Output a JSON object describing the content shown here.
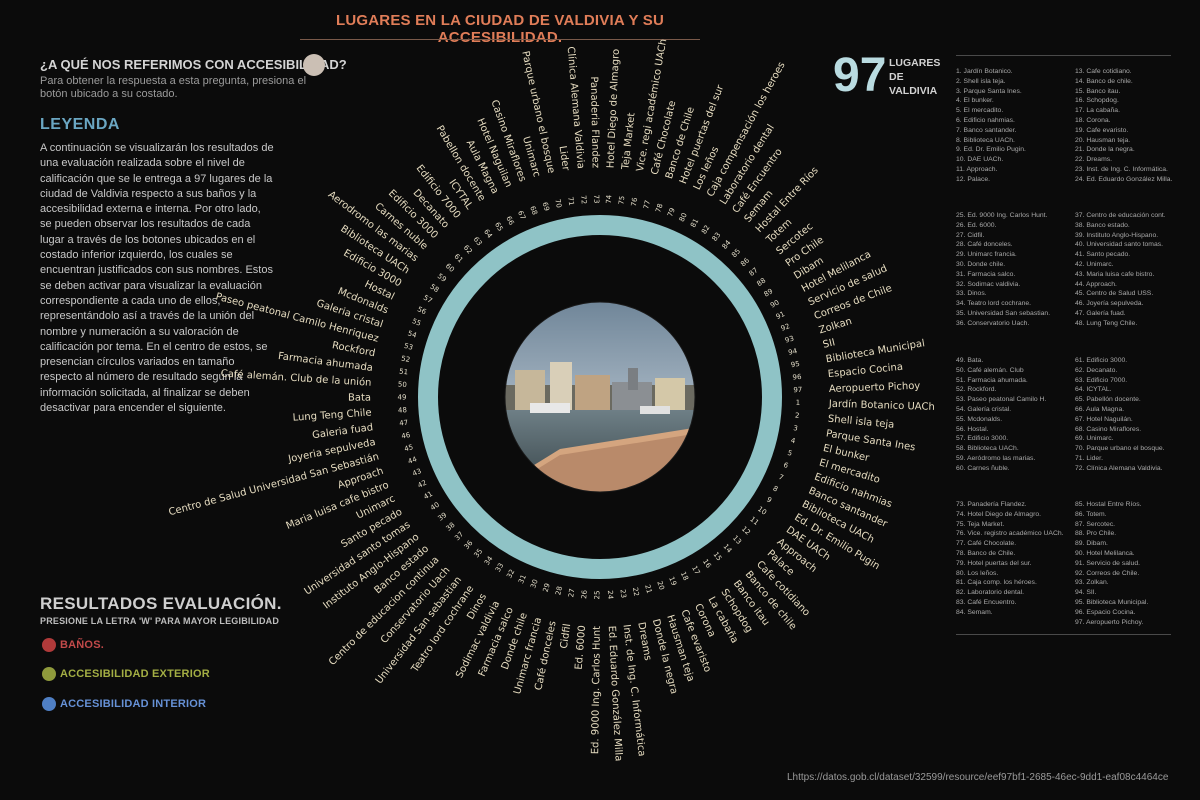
{
  "header": {
    "title": "LUGARES EN LA CIUDAD DE VALDIVIA Y SU ACCESIBILIDAD."
  },
  "question": {
    "heading": "¿A QUÉ NOS REFERIMOS CON ACCESIBILIDAD?",
    "text": "Para obtener la respuesta a esta pregunta, presiona el botón ubicado a su costado."
  },
  "legend": {
    "heading": "LEYENDA",
    "text": "A continuación se visualizarán los resultados de una evaluación realizada sobre el nivel de calificación que se le entrega a 97 lugares de la ciudad de Valdivia respecto a sus baños y la accesibilidad externa e interna. Por otro lado, se pueden observar los resultados de cada lugar a través de los botones ubicados en el costado inferior izquierdo, los cuales se encuentran justificados con sus nombres. Estos se deben activar para visualizar la evaluación correspondiente a cada uno de ellos, representándolo así a través de la unión del nombre y numeración a su valoración de calificación por tema. En el centro de estos, se presencian círculos variados en tamaño respecto al número de resultado según la información solicitada, al finalizar se deben desactivar para encender el siguiente."
  },
  "results": {
    "heading": "RESULTADOS EVALUACIÓN.",
    "subtitle": "PRESIONE LA LETRA 'W' PARA MAYOR LEGIBILIDAD",
    "buttons": [
      {
        "label": "BAÑOS.",
        "color": "#b03a3a",
        "text_color": "#c24a4a"
      },
      {
        "label": "ACCESIBILIDAD EXTERIOR",
        "color": "#8f9a3c",
        "text_color": "#a3ae44"
      },
      {
        "label": "ACCESIBILIDAD INTERIOR",
        "color": "#4f7fc4",
        "text_color": "#6691d6"
      }
    ]
  },
  "counter": {
    "value": "97",
    "label": "LUGARES DE VALDIVIA"
  },
  "source": "Lhttps://datos.gob.cl/dataset/32599/resource/eef97bf1-2685-46ec-9dd1-eaf08c4464ce",
  "chart_data": {
    "type": "radial-labels",
    "ring_color": "#8fc3c6",
    "label_color": "#e6dcc0",
    "center_image": "photo-valdivia-riverfront",
    "places": [
      "Jardín Botanico UACh",
      "Shell isla teja",
      "Parque Santa Ines",
      "El bunker",
      "El mercadito",
      "Edificio nahmias",
      "Banco santander",
      "Biblioteca UACh",
      "Ed. Dr. Emilio Pugin",
      "DAE UACh",
      "Approach",
      "Palace",
      "Cafe cotidiano",
      "Banco de chile",
      "Banco itau",
      "Schopdog",
      "La cabaña",
      "Corona",
      "Cafe evaristo",
      "Hausman teja",
      "Donde la negra",
      "Dreams",
      "Inst. de Ing. C. Informática",
      "Ed. Eduardo González Milla",
      "Ed. 9000 Ing. Carlos Hunt",
      "Ed. 6000",
      "Cidfil",
      "Café donceles",
      "Unimarc francia",
      "Donde chile",
      "Farmacia salco",
      "Sodimac valdivia",
      "Dinos",
      "Teatro lord cochrane",
      "Universidad San sebastian",
      "Conservatorio Uach",
      "Centro de educacion continua",
      "Banco estado",
      "Instituto Anglo-Hispano",
      "Universidad santo tomas",
      "Santo pecado",
      "Unimarc",
      "Maria luisa cafe bistro",
      "Approach",
      "Centro de Salud Universidad San Sebastián",
      "Joyeria sepulveda",
      "Galeria fuad",
      "Lung Teng Chile",
      "Bata",
      "Café alemán. Club de la unión",
      "Farmacia ahumada",
      "Rockford",
      "Paseo peatonal Camilo Henriquez",
      "Galeria cristal",
      "Mcdonalds",
      "Hostal",
      "Edificio 3000",
      "Biblioteca UACh",
      "Aerodromo las marias",
      "Carnes nuble",
      "Edificio 3000",
      "Decanato",
      "Edificio 7000",
      "ICYTAL",
      "Pabellon docente",
      "Aula Magna",
      "Hotel Naguilan",
      "Casino Miraflores",
      "Unimarc",
      "Parque urbano el bosque",
      "Lider",
      "Clínica Alemana Valdivia",
      "Panaderia Flandez",
      "Hotel Diego de Almagro",
      "Teja Market",
      "Vice. regi académico UACh",
      "Café Chocolate",
      "Banco de Chile",
      "Hotel puertas del sur",
      "Los leños",
      "Caja compensación los heroes",
      "Laboratorio dental",
      "Café Encuentro",
      "Semam",
      "Hostal Entre Ríos",
      "Totem",
      "Sercotec",
      "Pro Chile",
      "Dibam",
      "Hotel Melilanca",
      "Servicio de salud",
      "Correos de Chile",
      "Zolkan",
      "SII",
      "Biblioteca Municipal",
      "Espacio Cocina",
      "Aeropuerto Pichoy"
    ]
  },
  "index_lists": [
    [
      [
        "1. Jardín Botanico.",
        "2. Shell isla teja.",
        "3. Parque Santa Ines.",
        "4. El bunker.",
        "5. El mercadito.",
        "6. Edificio nahmias.",
        "7. Banco santander.",
        "8. Biblioteca UACh.",
        "9. Ed. Dr. Emilio Pugin.",
        "10. DAE UACh.",
        "11. Approach.",
        "12. Palace."
      ],
      [
        "13. Cafe cotidiano.",
        "14. Banco de chile.",
        "15. Banco itau.",
        "16. Schopdog.",
        "17. La cabaña.",
        "18. Corona.",
        "19. Cafe evaristo.",
        "20. Hausman teja.",
        "21. Donde la negra.",
        "22. Dreams.",
        "23. Inst. de Ing. C. Informática.",
        "24. Ed. Eduardo González Milla."
      ]
    ],
    [
      [
        "25. Ed. 9000 Ing. Carlos Hunt.",
        "26. Ed. 6000.",
        "27. Cidfil.",
        "28. Café donceles.",
        "29. Unimarc francia.",
        "30. Donde chile.",
        "31. Farmacia salco.",
        "32. Sodimac valdivia.",
        "33. Dinos.",
        "34. Teatro lord cochrane.",
        "35. Universidad San sebastian.",
        "36. Conservatorio Uach."
      ],
      [
        "37. Centro de educación cont.",
        "38. Banco estado.",
        "39. Instituto Anglo-Hispano.",
        "40. Universidad santo tomas.",
        "41. Santo pecado.",
        "42. Unimarc.",
        "43. Maria luisa cafe bistro.",
        "44. Approach.",
        "45. Centro de Salud USS.",
        "46. Joyería sepulveda.",
        "47. Galería fuad.",
        "48. Lung Teng Chile."
      ]
    ],
    [
      [
        "49. Bata.",
        "50. Café alemán. Club",
        "51. Farmacia ahumada.",
        "52. Rockford.",
        "53. Paseo peatonal Camilo H.",
        "54. Galería cristal.",
        "55. Mcdonalds.",
        "56. Hostal.",
        "57. Edificio 3000.",
        "58. Biblioteca UACh.",
        "59. Aeródromo las marias.",
        "60. Carnes ñuble."
      ],
      [
        "61. Edificio 3000.",
        "62. Decanato.",
        "63. Edificio 7000.",
        "64. ICYTAL.",
        "65. Pabellón docente.",
        "66. Aula Magna.",
        "67. Hotel Naguilán.",
        "68. Casino Miraflores.",
        "69. Unimarc.",
        "70. Parque urbano el bosque.",
        "71. Lider.",
        "72. Clínica Alemana Valdivia."
      ]
    ],
    [
      [
        "73. Panadería Flandez.",
        "74. Hotel Diego de Almagro.",
        "75. Teja Market.",
        "76. Vice. registro académico UACh.",
        "77. Café Chocolate.",
        "78. Banco de Chile.",
        "79. Hotel puertas del sur.",
        "80. Los leños.",
        "81. Caja comp. los héroes.",
        "82. Laboratorio dental.",
        "83. Café Encuentro.",
        "84. Semam."
      ],
      [
        "85. Hostal Entre Ríos.",
        "86. Totem.",
        "87. Sercotec.",
        "88. Pro Chile.",
        "89. Dibam.",
        "90. Hotel Melilanca.",
        "91. Servicio de salud.",
        "92. Correos de Chile.",
        "93. Zolkan.",
        "94. SII.",
        "95. Biblioteca Municipal.",
        "96. Espacio Cocina.",
        "97. Aeropuerto Pichoy."
      ]
    ]
  ]
}
